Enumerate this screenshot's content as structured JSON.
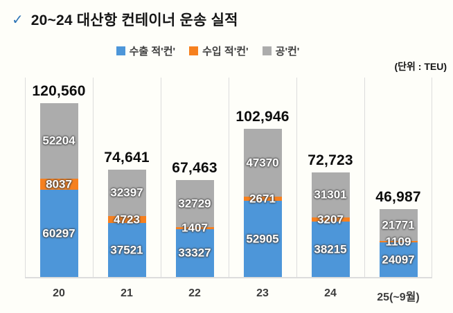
{
  "title": {
    "check_icon": "✓",
    "text": "20~24 대산항 컨테이너 운송 실적"
  },
  "unit_label": "(단위 : TEU)",
  "colors": {
    "export_blue": "#4d96d9",
    "import_orange": "#f6801f",
    "empty_gray": "#acacac",
    "check_blue": "#2e75b6",
    "grid_gray": "#dcdcdc"
  },
  "chart_data": {
    "type": "bar",
    "stacked": true,
    "title": "20~24 대산항 컨테이너 운송 실적",
    "unit": "TEU",
    "legend_position": "top-center",
    "y_axis_visible": false,
    "grid": "vertical-category-dividers",
    "categories": [
      "20",
      "21",
      "22",
      "23",
      "24",
      "25(~9월)"
    ],
    "series": [
      {
        "name": "수출 적'컨'",
        "color_key": "export_blue",
        "values": [
          60297,
          37521,
          33327,
          52905,
          38215,
          24097
        ]
      },
      {
        "name": "수입 적'컨'",
        "color_key": "import_orange",
        "values": [
          8037,
          4723,
          1407,
          2671,
          3207,
          1109
        ]
      },
      {
        "name": "공'컨'",
        "color_key": "empty_gray",
        "values": [
          52204,
          32397,
          32729,
          47370,
          31301,
          21771
        ]
      }
    ],
    "totals": [
      120560,
      74641,
      67463,
      102946,
      72723,
      46987
    ],
    "totals_formatted": [
      "120,560",
      "74,641",
      "67,463",
      "102,946",
      "72,723",
      "46,987"
    ],
    "ylim": [
      0,
      139000
    ]
  }
}
